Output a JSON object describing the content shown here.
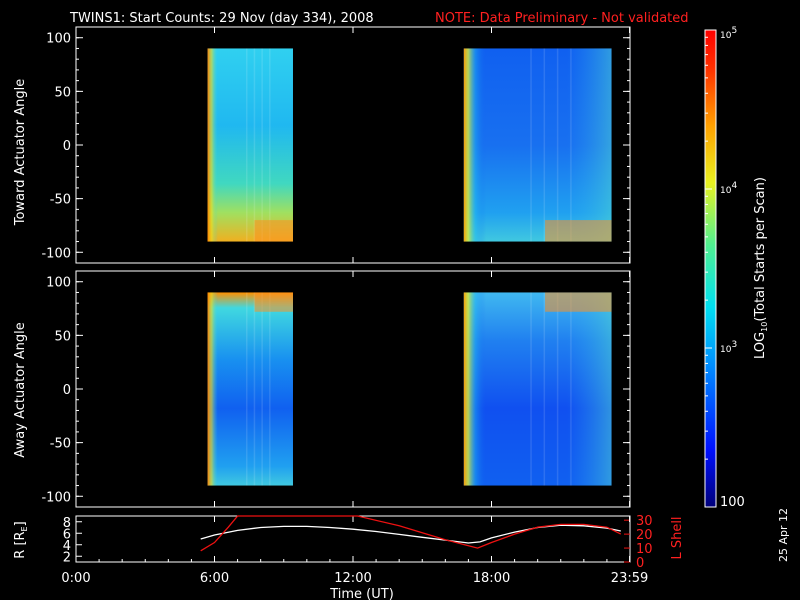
{
  "title": {
    "main": "TWINS1: Start Counts: 29 Nov (day 334), 2008",
    "note": "NOTE: Data Preliminary - Not validated"
  },
  "colors": {
    "background": "#000000",
    "axis": "#ffffff",
    "note": "#ff2020",
    "orbit_R": "#ffffff",
    "orbit_L": "#ee1111"
  },
  "stamp": "25 Apr 12",
  "chart_data": [
    {
      "type": "heatmap",
      "name": "toward",
      "ylabel": "Toward Actuator Angle",
      "ylim": [
        -110,
        110
      ],
      "yticks": [
        100,
        50,
        0,
        -50,
        -100
      ],
      "x_range_hours": [
        0,
        24
      ],
      "data_angle_range": [
        -90,
        90
      ],
      "blocks": [
        {
          "start_hour": 5.7,
          "end_hour": 9.4,
          "level": "moderate"
        },
        {
          "start_hour": 16.8,
          "end_hour": 23.2,
          "level": "low"
        }
      ]
    },
    {
      "type": "heatmap",
      "name": "away",
      "ylabel": "Away Actuator Angle",
      "ylim": [
        -110,
        110
      ],
      "yticks": [
        100,
        50,
        0,
        -50,
        -100
      ],
      "x_range_hours": [
        0,
        24
      ],
      "data_angle_range": [
        -90,
        90
      ],
      "blocks": [
        {
          "start_hour": 5.7,
          "end_hour": 9.4,
          "level": "moderate"
        },
        {
          "start_hour": 16.8,
          "end_hour": 23.2,
          "level": "low"
        }
      ]
    },
    {
      "type": "line",
      "name": "orbit",
      "ylabel": "R [R",
      "ylabel_sub": "E",
      "ylabel_close": "]",
      "ylim": [
        1,
        9
      ],
      "yticks": [
        8,
        6,
        4,
        2
      ],
      "y2label": "L Shell",
      "y2lim": [
        0,
        33
      ],
      "y2ticks": [
        30,
        20,
        10,
        0
      ],
      "xlabel": "Time (UT)",
      "xticks": [
        {
          "hour": 0,
          "label": "0:00"
        },
        {
          "hour": 6,
          "label": "6:00"
        },
        {
          "hour": 12,
          "label": "12:00"
        },
        {
          "hour": 18,
          "label": "18:00"
        },
        {
          "hour": 23.98,
          "label": "23:59"
        }
      ],
      "series": [
        {
          "name": "R",
          "axis": "left",
          "x": [
            5.4,
            6.0,
            7.0,
            8.0,
            9.0,
            10.0,
            11.0,
            12.0,
            13.0,
            14.0,
            15.0,
            16.0,
            17.0,
            17.5,
            18.0,
            19.0,
            20.0,
            21.0,
            22.0,
            23.0,
            23.6
          ],
          "y": [
            5.0,
            5.7,
            6.5,
            7.0,
            7.2,
            7.2,
            7.0,
            6.7,
            6.3,
            5.8,
            5.3,
            4.8,
            4.3,
            4.5,
            5.2,
            6.2,
            7.0,
            7.4,
            7.3,
            6.9,
            6.4
          ]
        },
        {
          "name": "L Shell",
          "axis": "right",
          "x": [
            5.4,
            6.0,
            6.6,
            7.0,
            12.2,
            14.0,
            16.0,
            17.4,
            18.0,
            19.0,
            20.0,
            21.0,
            22.0,
            23.0,
            23.6
          ],
          "y": [
            8.0,
            14.0,
            25.0,
            33.0,
            33.0,
            26.0,
            16.0,
            10.0,
            14.0,
            20.0,
            25.0,
            27.0,
            27.0,
            25.0,
            20.0
          ]
        }
      ]
    }
  ],
  "colorbar": {
    "label_prefix": "LOG",
    "label_sub": "10",
    "label_suffix": "(Total Starts per Scan)",
    "range": [
      2,
      5
    ],
    "ticks": [
      {
        "value": 5,
        "base": "10",
        "exp": "5"
      },
      {
        "value": 4,
        "base": "10",
        "exp": "4"
      },
      {
        "value": 3,
        "base": "10",
        "exp": "3"
      },
      {
        "value": 2,
        "base": "100",
        "exp": ""
      }
    ]
  }
}
